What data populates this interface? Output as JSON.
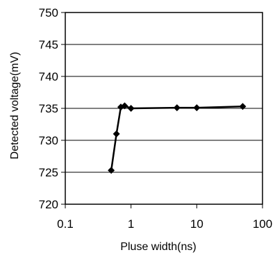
{
  "chart_data": {
    "type": "line",
    "title": "",
    "xlabel": "Pluse width(ns)",
    "ylabel": "Detected voltage(mV)",
    "x_scale": "log",
    "xlim": [
      0.1,
      100
    ],
    "ylim": [
      720,
      750
    ],
    "x_ticks": [
      0.1,
      1,
      10,
      100
    ],
    "x_tick_labels": [
      "0.1",
      "1",
      "10",
      "100"
    ],
    "y_ticks": [
      720,
      725,
      730,
      735,
      740,
      745,
      750
    ],
    "y_tick_labels": [
      "720",
      "725",
      "730",
      "735",
      "740",
      "745",
      "750"
    ],
    "grid": "horizontal",
    "legend": "none",
    "series": [
      {
        "x": [
          0.5,
          0.6,
          0.7,
          0.8,
          1,
          5,
          10,
          50
        ],
        "y": [
          725.3,
          731.0,
          735.2,
          735.4,
          735.0,
          735.1,
          735.1,
          735.3
        ],
        "color": "#000000",
        "marker": "diamond"
      }
    ]
  }
}
